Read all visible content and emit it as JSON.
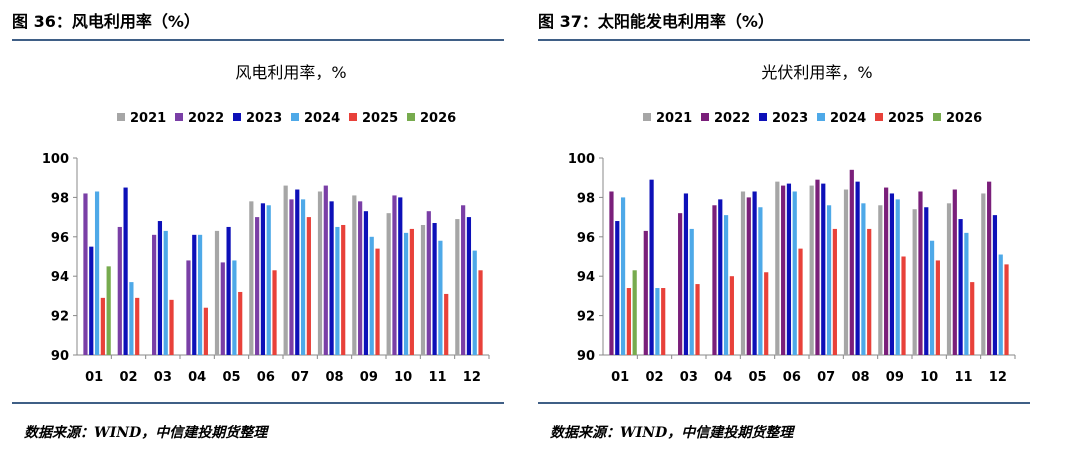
{
  "panels": [
    {
      "figure_title": "图 36：风电利用率（%）",
      "source": "数据来源：WIND，中信建投期货整理"
    },
    {
      "figure_title": "图 37：太阳能发电利用率（%）",
      "source": "数据来源：WIND，中信建投期货整理"
    }
  ],
  "chart_data": [
    {
      "type": "bar",
      "title": "风电利用率，%",
      "xlabel": "",
      "ylabel": "",
      "categories": [
        "01",
        "02",
        "03",
        "04",
        "05",
        "06",
        "07",
        "08",
        "09",
        "10",
        "11",
        "12"
      ],
      "ylim": [
        90,
        100
      ],
      "yticks": [
        90,
        92,
        94,
        96,
        98,
        100
      ],
      "grid": false,
      "legend": "top",
      "series": [
        {
          "name": "2021",
          "color": "#a6a6a6",
          "values": [
            null,
            null,
            null,
            null,
            96.3,
            97.8,
            98.6,
            98.3,
            98.1,
            97.2,
            96.6,
            96.9
          ]
        },
        {
          "name": "2022",
          "color": "#7a3fa6",
          "values": [
            98.2,
            96.5,
            96.1,
            94.8,
            94.7,
            97.0,
            97.9,
            98.6,
            97.8,
            98.1,
            97.3,
            97.6
          ]
        },
        {
          "name": "2023",
          "color": "#0d10b8",
          "values": [
            95.5,
            98.5,
            96.8,
            96.1,
            96.5,
            97.7,
            98.4,
            97.8,
            97.3,
            98.0,
            96.7,
            97.0
          ]
        },
        {
          "name": "2024",
          "color": "#4ea9e8",
          "values": [
            98.3,
            93.7,
            96.3,
            96.1,
            94.8,
            97.6,
            97.9,
            96.5,
            96.0,
            96.2,
            95.8,
            95.3
          ]
        },
        {
          "name": "2025",
          "color": "#e8413a",
          "values": [
            92.9,
            92.9,
            92.8,
            92.4,
            93.2,
            94.3,
            97.0,
            96.6,
            95.4,
            96.4,
            93.1,
            94.3
          ]
        },
        {
          "name": "2026",
          "color": "#77ab4e",
          "values": [
            94.5,
            null,
            null,
            null,
            null,
            null,
            null,
            null,
            null,
            null,
            null,
            null
          ]
        }
      ]
    },
    {
      "type": "bar",
      "title": "光伏利用率，%",
      "xlabel": "",
      "ylabel": "",
      "categories": [
        "01",
        "02",
        "03",
        "04",
        "05",
        "06",
        "07",
        "08",
        "09",
        "10",
        "11",
        "12"
      ],
      "ylim": [
        90,
        100
      ],
      "yticks": [
        90,
        92,
        94,
        96,
        98,
        100
      ],
      "grid": false,
      "legend": "top",
      "series": [
        {
          "name": "2021",
          "color": "#a6a6a6",
          "values": [
            null,
            null,
            null,
            null,
            98.3,
            98.8,
            98.6,
            98.4,
            97.6,
            97.4,
            97.7,
            98.2
          ]
        },
        {
          "name": "2022",
          "color": "#7a1f7a",
          "values": [
            98.3,
            96.3,
            97.2,
            97.6,
            98.0,
            98.6,
            98.9,
            99.4,
            98.5,
            98.3,
            98.4,
            98.8
          ]
        },
        {
          "name": "2023",
          "color": "#0d10b8",
          "values": [
            96.8,
            98.9,
            98.2,
            97.9,
            98.3,
            98.7,
            98.7,
            98.8,
            98.2,
            97.5,
            96.9,
            97.1
          ]
        },
        {
          "name": "2024",
          "color": "#4ea9e8",
          "values": [
            98.0,
            93.4,
            96.4,
            97.1,
            97.5,
            98.3,
            97.6,
            97.7,
            97.9,
            95.8,
            96.2,
            95.1
          ]
        },
        {
          "name": "2025",
          "color": "#e8413a",
          "values": [
            93.4,
            93.4,
            93.6,
            94.0,
            94.2,
            95.4,
            96.4,
            96.4,
            95.0,
            94.8,
            93.7,
            94.6
          ]
        },
        {
          "name": "2026",
          "color": "#77ab4e",
          "values": [
            94.3,
            null,
            null,
            null,
            null,
            null,
            null,
            null,
            null,
            null,
            null,
            null
          ]
        }
      ]
    }
  ]
}
